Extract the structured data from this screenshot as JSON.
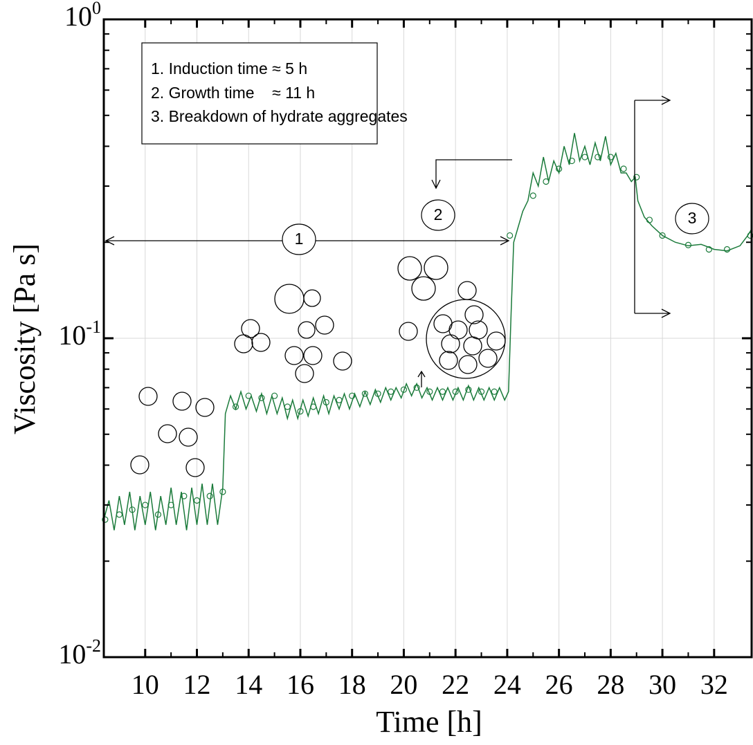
{
  "chart_data": {
    "type": "line",
    "x_label": "Time [h]",
    "y_label": "Viscosity [Pa s]",
    "log_y": true,
    "grid": true,
    "xlim": [
      8.4,
      33.45
    ],
    "ylim": [
      0.01,
      1
    ],
    "xticks": [
      10,
      12,
      14,
      16,
      18,
      20,
      22,
      24,
      26,
      28,
      30,
      32
    ],
    "yticks": [
      {
        "value": 0.01,
        "label": "10^-2"
      },
      {
        "value": 0.1,
        "label": "10^-1"
      },
      {
        "value": 1,
        "label": "10^0"
      }
    ],
    "series": [
      {
        "color": "#1a7a3a",
        "marker": "none",
        "x": [
          8.4,
          8.6,
          8.8,
          9.0,
          9.2,
          9.4,
          9.6,
          9.8,
          10.0,
          10.2,
          10.4,
          10.6,
          10.8,
          11.0,
          11.2,
          11.4,
          11.6,
          11.8,
          12.0,
          12.2,
          12.4,
          12.6,
          12.8,
          13.0,
          13.1,
          13.3,
          13.5,
          13.7,
          13.9,
          14.1,
          14.3,
          14.5,
          14.7,
          14.9,
          15.1,
          15.3,
          15.5,
          15.7,
          15.9,
          16.1,
          16.3,
          16.5,
          16.7,
          16.9,
          17.1,
          17.3,
          17.5,
          17.7,
          17.9,
          18.1,
          18.3,
          18.5,
          18.7,
          18.9,
          19.1,
          19.3,
          19.5,
          19.7,
          19.9,
          20.1,
          20.3,
          20.5,
          20.7,
          20.9,
          21.1,
          21.3,
          21.5,
          21.7,
          21.9,
          22.1,
          22.3,
          22.5,
          22.7,
          22.9,
          23.1,
          23.3,
          23.5,
          23.7,
          23.9,
          24.05,
          24.15,
          24.25,
          24.4,
          24.6,
          24.8,
          25.0,
          25.2,
          25.4,
          25.6,
          25.8,
          26.0,
          26.2,
          26.4,
          26.6,
          26.8,
          27.0,
          27.2,
          27.4,
          27.6,
          27.8,
          28.0,
          28.2,
          28.4,
          28.6,
          28.8,
          28.95,
          29.05,
          29.3,
          29.6,
          30.0,
          30.5,
          31.0,
          31.5,
          32.0,
          32.5,
          33.0,
          33.3,
          33.45
        ],
        "values": [
          0.027,
          0.031,
          0.025,
          0.032,
          0.026,
          0.033,
          0.025,
          0.032,
          0.026,
          0.033,
          0.025,
          0.032,
          0.026,
          0.034,
          0.026,
          0.033,
          0.025,
          0.034,
          0.026,
          0.035,
          0.026,
          0.035,
          0.026,
          0.034,
          0.058,
          0.066,
          0.06,
          0.068,
          0.06,
          0.066,
          0.059,
          0.067,
          0.058,
          0.066,
          0.058,
          0.065,
          0.056,
          0.064,
          0.056,
          0.064,
          0.057,
          0.065,
          0.058,
          0.066,
          0.058,
          0.066,
          0.06,
          0.067,
          0.06,
          0.067,
          0.061,
          0.068,
          0.062,
          0.069,
          0.063,
          0.07,
          0.064,
          0.07,
          0.065,
          0.072,
          0.066,
          0.072,
          0.065,
          0.07,
          0.064,
          0.07,
          0.064,
          0.07,
          0.064,
          0.07,
          0.064,
          0.071,
          0.064,
          0.07,
          0.064,
          0.07,
          0.064,
          0.07,
          0.064,
          0.068,
          0.12,
          0.2,
          0.22,
          0.25,
          0.27,
          0.33,
          0.3,
          0.37,
          0.31,
          0.36,
          0.33,
          0.4,
          0.35,
          0.44,
          0.36,
          0.4,
          0.35,
          0.41,
          0.36,
          0.43,
          0.35,
          0.38,
          0.33,
          0.33,
          0.31,
          0.32,
          0.27,
          0.24,
          0.225,
          0.21,
          0.2,
          0.195,
          0.197,
          0.19,
          0.188,
          0.195,
          0.21,
          0.22
        ]
      },
      {
        "color": "#1a7a3a",
        "marker": "circle",
        "x": [
          8.45,
          9.0,
          9.5,
          10.0,
          10.5,
          11.0,
          11.5,
          12.0,
          12.5,
          13.0,
          13.5,
          14.0,
          14.5,
          15.0,
          15.5,
          16.0,
          16.5,
          17.0,
          17.5,
          18.0,
          18.5,
          19.0,
          19.5,
          20.0,
          20.5,
          21.0,
          21.5,
          22.0,
          22.5,
          23.0,
          23.5,
          24.1,
          25.0,
          25.5,
          26.0,
          26.5,
          27.0,
          27.5,
          28.0,
          28.5,
          29.0,
          29.5,
          30.0,
          31.0,
          31.8,
          32.5,
          33.4
        ],
        "values": [
          0.027,
          0.028,
          0.029,
          0.03,
          0.028,
          0.03,
          0.032,
          0.031,
          0.032,
          0.033,
          0.061,
          0.066,
          0.065,
          0.066,
          0.061,
          0.059,
          0.061,
          0.063,
          0.064,
          0.066,
          0.067,
          0.067,
          0.068,
          0.069,
          0.07,
          0.068,
          0.068,
          0.068,
          0.069,
          0.068,
          0.068,
          0.21,
          0.28,
          0.31,
          0.34,
          0.36,
          0.37,
          0.37,
          0.37,
          0.34,
          0.32,
          0.235,
          0.21,
          0.196,
          0.19,
          0.19,
          0.21
        ]
      }
    ],
    "annotations": {
      "box": [
        "1. Induction time ≈ 5 h",
        "2. Growth time    ≈ 11 h",
        "3. Breakdown of hydrate aggregates"
      ],
      "stages": [
        "1",
        "2",
        "3"
      ]
    }
  }
}
